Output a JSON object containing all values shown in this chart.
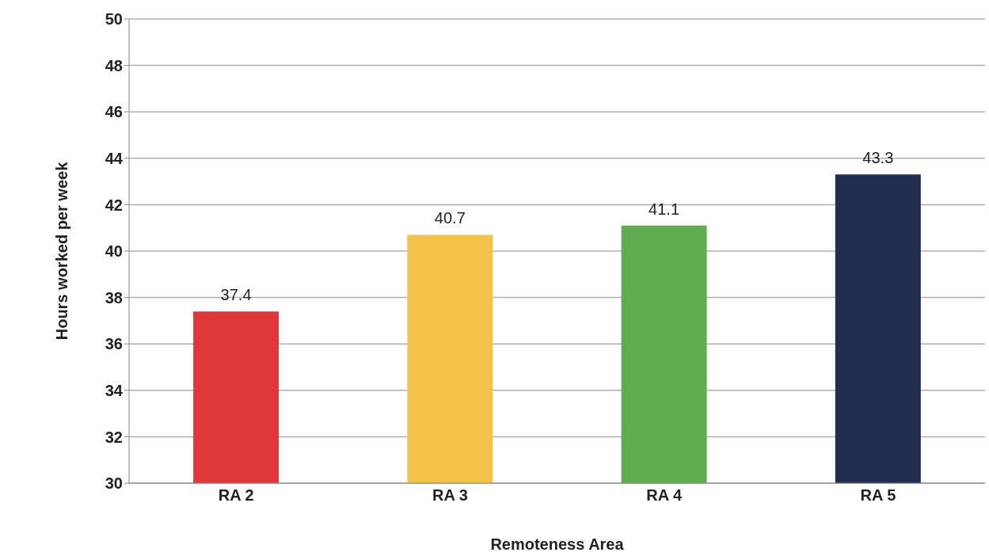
{
  "chart_data": {
    "type": "bar",
    "xlabel": "Remoteness Area",
    "ylabel": "Hours worked per week",
    "categories": [
      "RA 2",
      "RA 3",
      "RA 4",
      "RA 5"
    ],
    "values": [
      37.4,
      40.7,
      41.1,
      43.3
    ],
    "colors": [
      "#e0373a",
      "#f4c44a",
      "#60ad50",
      "#212d4e"
    ],
    "ylim": [
      30,
      50
    ],
    "yticks": [
      30,
      32,
      34,
      36,
      38,
      40,
      42,
      44,
      46,
      48,
      50
    ],
    "grid": "y",
    "data_labels": true
  }
}
